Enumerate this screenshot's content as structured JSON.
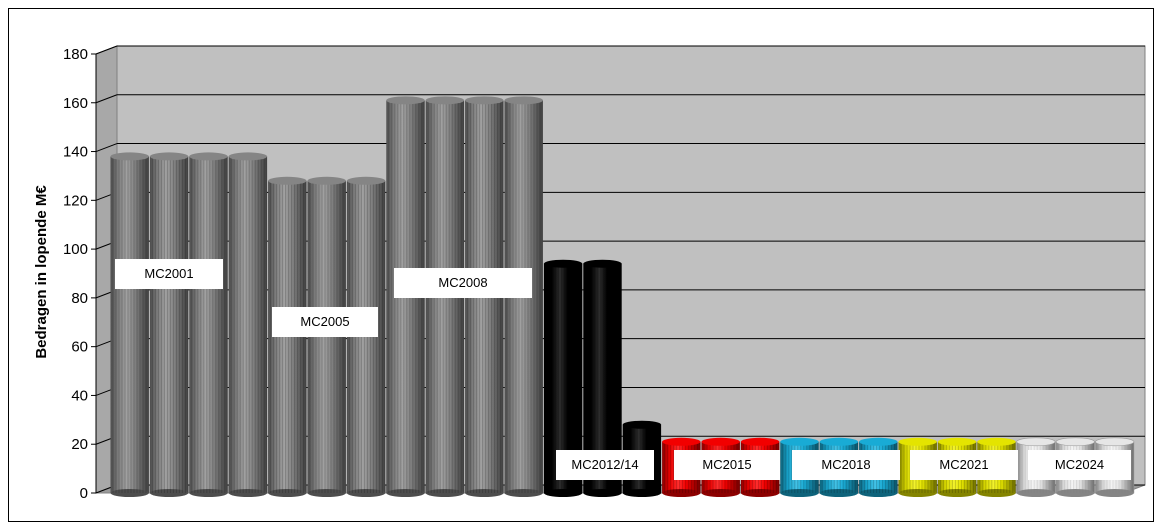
{
  "chart_data": {
    "type": "bar",
    "style": "3d-cylinder",
    "ylabel": "Bedragen in lopende M€",
    "ylim": [
      0,
      180
    ],
    "yticks": [
      0,
      20,
      40,
      60,
      80,
      100,
      120,
      140,
      160,
      180
    ],
    "grid": true,
    "groups": [
      {
        "label": "MC2001",
        "color": "#8c8c8c",
        "values": [
          138,
          138,
          138,
          138
        ]
      },
      {
        "label": "MC2005",
        "color": "#8c8c8c",
        "values": [
          128,
          128,
          128
        ]
      },
      {
        "label": "MC2008",
        "color": "#8c8c8c",
        "values": [
          161,
          161,
          161,
          161
        ]
      },
      {
        "label": "MC2012/14",
        "color": "#000000",
        "values": [
          94,
          94,
          28
        ]
      },
      {
        "label": "MC2015",
        "color": "#ff0000",
        "values": [
          21,
          21,
          21
        ]
      },
      {
        "label": "MC2018",
        "color": "#1ab4e0",
        "values": [
          21,
          21,
          21
        ]
      },
      {
        "label": "MC2021",
        "color": "#f0f000",
        "values": [
          21,
          21,
          21
        ]
      },
      {
        "label": "MC2024",
        "color": "#f2f2f2",
        "values": [
          21,
          21,
          21
        ]
      }
    ]
  }
}
